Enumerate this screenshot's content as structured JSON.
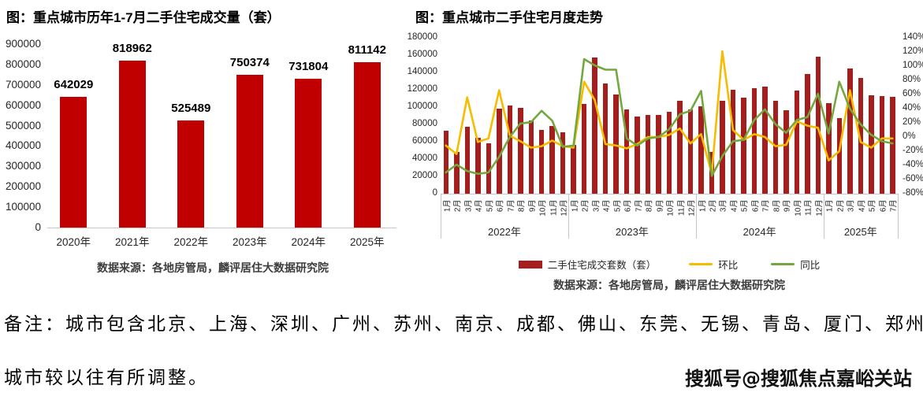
{
  "note": {
    "line1": "备注：城市包含北京、上海、深圳、广州、苏州、南京、成都、佛山、东莞、无锡、青岛、厦门、郑州，",
    "line2": "城市较以往有所调整。"
  },
  "watermark": "搜狐号@搜狐焦点嘉峪关站",
  "chart_data": [
    {
      "type": "bar",
      "title": "图：重点城市历年1-7月二手住宅成交量（套）",
      "source": "数据来源：各地房管局，麟评居住大数据研究院",
      "categories": [
        "2020年",
        "2021年",
        "2022年",
        "2023年",
        "2024年",
        "2025年"
      ],
      "values": [
        642029,
        818962,
        525489,
        750374,
        731804,
        811142
      ],
      "data_labels": [
        "642029",
        "818962",
        "525489",
        "750374",
        "731804",
        "811142"
      ],
      "ylim": [
        0,
        900000
      ],
      "ytick_step": 100000,
      "grid": false,
      "bar_color": "#c00000"
    },
    {
      "type": "bar+line",
      "title": "图：重点城市二手住宅月度走势",
      "source": "数据来源：各地房管局，麟评居住大数据研究院",
      "year_groups": [
        {
          "label": "2022年",
          "months": 12
        },
        {
          "label": "2023年",
          "months": 12
        },
        {
          "label": "2024年",
          "months": 12
        },
        {
          "label": "2025年",
          "months": 7
        }
      ],
      "month_label_suffix": "月",
      "left_axis": {
        "min": 0,
        "max": 180000,
        "step": 20000
      },
      "right_axis": {
        "min": -80,
        "max": 140,
        "step": 20,
        "suffix": "%"
      },
      "grid": false,
      "legend_position": "bottom",
      "series": [
        {
          "name": "二手住宅成交套数（套）",
          "type": "bar",
          "axis": "left",
          "color": "#a51e1e",
          "values": [
            73000,
            48000,
            77000,
            65000,
            58000,
            98000,
            102000,
            99000,
            85000,
            74000,
            78000,
            71000,
            56000,
            104000,
            157000,
            127000,
            115000,
            97000,
            89000,
            91000,
            91000,
            95000,
            107000,
            97000,
            101000,
            48000,
            107000,
            120000,
            111000,
            122000,
            124000,
            107000,
            96000,
            119000,
            138000,
            158000,
            105000,
            87000,
            145000,
            134000,
            114000,
            113000,
            112000
          ]
        },
        {
          "name": "环比",
          "type": "line",
          "axis": "right",
          "color": "#f7bc00",
          "values": [
            -12,
            -24,
            56,
            -7,
            -2,
            66,
            2,
            -6,
            -15,
            -13,
            -5,
            -13,
            -15,
            78,
            52,
            -10,
            -12,
            -16,
            -10,
            0,
            0,
            3,
            12,
            -9,
            4,
            -52,
            121,
            10,
            -4,
            4,
            0,
            -13,
            -11,
            22,
            16,
            13,
            -33,
            -20,
            66,
            -7,
            -15,
            -2,
            -2
          ]
        },
        {
          "name": "同比",
          "type": "line",
          "axis": "right",
          "color": "#74a83f",
          "values": [
            -50,
            -39,
            -48,
            -52,
            -50,
            -28,
            0,
            19,
            21,
            37,
            23,
            -14,
            -12,
            110,
            101,
            95,
            95,
            -2,
            -12,
            -2,
            0,
            11,
            32,
            37,
            65,
            -55,
            -27,
            -6,
            -4,
            24,
            39,
            18,
            6,
            24,
            28,
            61,
            5,
            78,
            40,
            18,
            3,
            -6,
            -9
          ]
        }
      ]
    }
  ]
}
